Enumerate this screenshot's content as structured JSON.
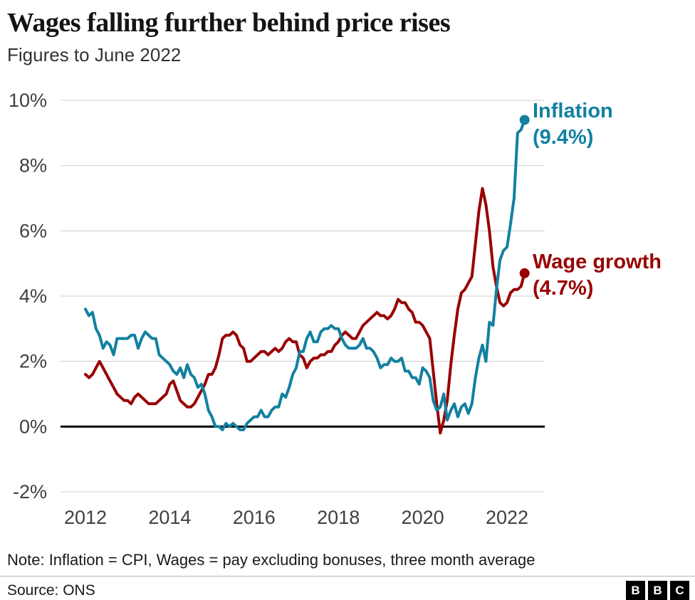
{
  "header": {
    "title": "Wages falling further behind price rises",
    "subtitle": "Figures to June 2022"
  },
  "colors": {
    "inflation": "#1380A1",
    "wage": "#990000",
    "grid": "#cccccc",
    "zero_line": "#000000",
    "axis_text": "#404040"
  },
  "footer": {
    "note": "Note: Inflation = CPI, Wages = pay excluding bonuses, three month average",
    "source": "Source: ONS",
    "logo_letters": [
      "B",
      "B",
      "C"
    ]
  },
  "chart_data": {
    "type": "line",
    "title": "Wages falling further behind price rises",
    "subtitle": "Figures to June 2022",
    "xlabel": "",
    "ylabel": "",
    "x_start_year": 2012,
    "x_step_months": 1,
    "x_end_label": "June 2022",
    "x_ticks": [
      2012,
      2014,
      2016,
      2018,
      2020,
      2022
    ],
    "y_ticks": [
      10,
      8,
      6,
      4,
      2,
      0,
      -2
    ],
    "y_tick_suffix": "%",
    "ylim": [
      -2,
      10
    ],
    "grid": "horizontal",
    "legend_position": "end-of-line-labels",
    "series": [
      {
        "name": "Inflation",
        "color": "#1380A1",
        "label_line1": "Inflation",
        "label_line2": "(9.4%)",
        "end_value": 9.4,
        "values": [
          3.6,
          3.4,
          3.5,
          3.0,
          2.8,
          2.4,
          2.6,
          2.5,
          2.2,
          2.7,
          2.7,
          2.7,
          2.7,
          2.8,
          2.8,
          2.4,
          2.7,
          2.9,
          2.8,
          2.7,
          2.7,
          2.2,
          2.1,
          2.0,
          1.9,
          1.7,
          1.6,
          1.8,
          1.5,
          1.9,
          1.6,
          1.5,
          1.2,
          1.3,
          1.0,
          0.5,
          0.3,
          0.0,
          0.0,
          -0.1,
          0.1,
          0.0,
          0.1,
          0.0,
          -0.1,
          -0.1,
          0.1,
          0.2,
          0.3,
          0.3,
          0.5,
          0.3,
          0.3,
          0.5,
          0.6,
          0.6,
          1.0,
          0.9,
          1.2,
          1.6,
          1.8,
          2.3,
          2.3,
          2.7,
          2.9,
          2.6,
          2.6,
          2.9,
          3.0,
          3.0,
          3.1,
          3.0,
          3.0,
          2.7,
          2.5,
          2.4,
          2.4,
          2.4,
          2.5,
          2.7,
          2.4,
          2.4,
          2.3,
          2.1,
          1.8,
          1.9,
          1.9,
          2.1,
          2.0,
          2.0,
          2.1,
          1.7,
          1.7,
          1.5,
          1.5,
          1.3,
          1.8,
          1.7,
          1.5,
          0.8,
          0.5,
          0.6,
          1.0,
          0.2,
          0.5,
          0.7,
          0.3,
          0.6,
          0.7,
          0.4,
          0.7,
          1.5,
          2.1,
          2.5,
          2.0,
          3.2,
          3.1,
          4.2,
          5.1,
          5.4,
          5.5,
          6.2,
          7.0,
          9.0,
          9.1,
          9.4
        ]
      },
      {
        "name": "Wage growth",
        "color": "#990000",
        "label_line1": "Wage growth",
        "label_line2": "(4.7%)",
        "end_value": 4.7,
        "values": [
          1.6,
          1.5,
          1.6,
          1.8,
          2.0,
          1.8,
          1.6,
          1.4,
          1.2,
          1.0,
          0.9,
          0.8,
          0.8,
          0.7,
          0.9,
          1.0,
          0.9,
          0.8,
          0.7,
          0.7,
          0.7,
          0.8,
          0.9,
          1.0,
          1.3,
          1.4,
          1.1,
          0.8,
          0.7,
          0.6,
          0.6,
          0.7,
          0.9,
          1.1,
          1.3,
          1.6,
          1.6,
          1.8,
          2.2,
          2.7,
          2.8,
          2.8,
          2.9,
          2.8,
          2.5,
          2.4,
          2.0,
          2.0,
          2.1,
          2.2,
          2.3,
          2.3,
          2.2,
          2.3,
          2.4,
          2.3,
          2.4,
          2.6,
          2.7,
          2.6,
          2.6,
          2.2,
          2.1,
          1.8,
          2.0,
          2.1,
          2.1,
          2.2,
          2.2,
          2.3,
          2.3,
          2.5,
          2.6,
          2.8,
          2.9,
          2.8,
          2.7,
          2.7,
          2.9,
          3.1,
          3.2,
          3.3,
          3.4,
          3.5,
          3.4,
          3.4,
          3.3,
          3.4,
          3.6,
          3.9,
          3.8,
          3.8,
          3.6,
          3.5,
          3.2,
          3.2,
          3.1,
          2.9,
          2.7,
          1.7,
          0.7,
          -0.2,
          0.2,
          0.8,
          1.9,
          2.8,
          3.6,
          4.1,
          4.2,
          4.4,
          4.6,
          5.6,
          6.6,
          7.3,
          6.8,
          6.0,
          4.9,
          4.3,
          3.8,
          3.7,
          3.8,
          4.1,
          4.2,
          4.2,
          4.3,
          4.7
        ]
      }
    ]
  }
}
